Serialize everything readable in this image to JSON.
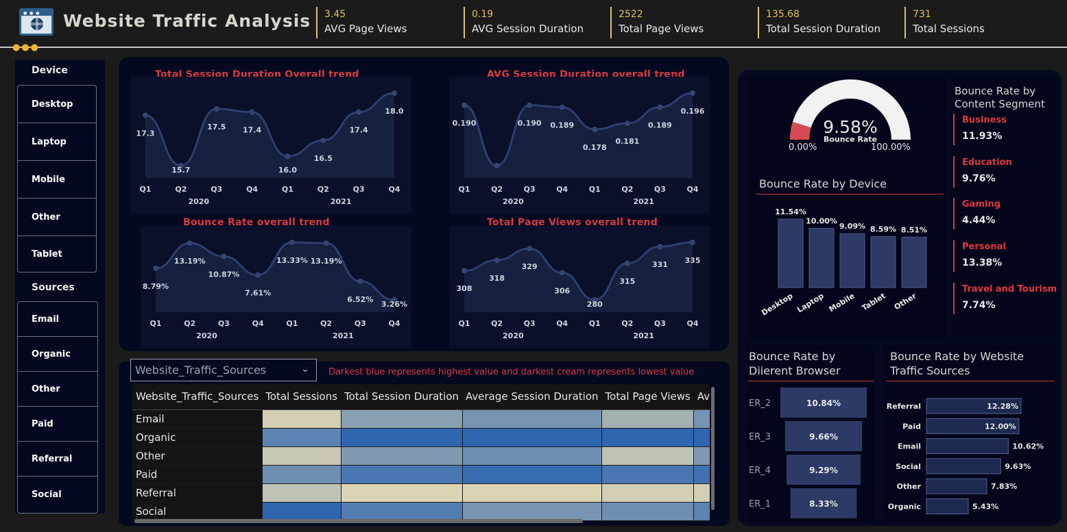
{
  "header": {
    "title": "Website Traffic Analysis",
    "kpis": [
      {
        "value": "3.45",
        "label": "AVG Page Views"
      },
      {
        "value": "0.19",
        "label": "AVG Session Duration"
      },
      {
        "value": "2522",
        "label": "Total Page Views"
      },
      {
        "value": "135.68",
        "label": "Total Session Duration"
      },
      {
        "value": "731",
        "label": "Total Sessions"
      }
    ]
  },
  "slicers": {
    "device": {
      "title": "Device",
      "items": [
        "Desktop",
        "Laptop",
        "Mobile",
        "Other",
        "Tablet"
      ]
    },
    "sources": {
      "title": "Sources",
      "items": [
        "Email",
        "Organic",
        "Other",
        "Paid",
        "Referral",
        "Social"
      ]
    }
  },
  "colors": {
    "accent_red": "#d83a44",
    "line": "#2e3f6e",
    "area": "#16203f",
    "bar": "#2e3a66",
    "gauge_fill": "#d84a52",
    "kpi_gold": "#e0c15a"
  },
  "chart_data": [
    {
      "type": "area",
      "title": "Total Session Duration Overall trend",
      "x": [
        "Q1",
        "Q2",
        "Q3",
        "Q4",
        "Q1",
        "Q2",
        "Q3",
        "Q4"
      ],
      "groups": [
        "2020",
        "2021"
      ],
      "values": [
        17.3,
        15.7,
        17.5,
        17.4,
        16.0,
        16.5,
        17.4,
        18.0
      ],
      "labels": [
        "17.3",
        "15.7",
        "17.5",
        "17.4",
        "16.0",
        "16.5",
        "17.4",
        "18.0"
      ]
    },
    {
      "type": "area",
      "title": "AVG Session Duration overall trend",
      "x": [
        "Q1",
        "Q2",
        "Q3",
        "Q4",
        "Q1",
        "Q2",
        "Q3",
        "Q4"
      ],
      "groups": [
        "2020",
        "2021"
      ],
      "values": [
        0.19,
        0.16,
        0.19,
        0.189,
        0.178,
        0.181,
        0.189,
        0.196
      ],
      "labels": [
        "0.190",
        "",
        "0.190",
        "0.189",
        "0.178",
        "0.181",
        "0.189",
        "0.196"
      ]
    },
    {
      "type": "area",
      "title": "Bounce Rate overall trend",
      "x": [
        "Q1",
        "Q2",
        "Q3",
        "Q4",
        "Q1",
        "Q2",
        "Q3",
        "Q4"
      ],
      "groups": [
        "2020",
        "2021"
      ],
      "values": [
        8.79,
        13.19,
        10.87,
        7.61,
        13.33,
        13.19,
        6.52,
        3.26
      ],
      "labels": [
        "8.79%",
        "13.19%",
        "10.87%",
        "7.61%",
        "13.33%",
        "13.19%",
        "6.52%",
        "3.26%"
      ]
    },
    {
      "type": "area",
      "title": "Total Page Views overall trend",
      "x": [
        "Q1",
        "Q2",
        "Q3",
        "Q4",
        "Q1",
        "Q2",
        "Q3",
        "Q4"
      ],
      "groups": [
        "2020",
        "2021"
      ],
      "values": [
        308,
        318,
        329,
        306,
        280,
        315,
        331,
        335
      ],
      "labels": [
        "308",
        "318",
        "329",
        "306",
        "280",
        "315",
        "331",
        "335"
      ]
    },
    {
      "type": "gauge",
      "title": "Bounce Rate",
      "value": 9.58,
      "value_label": "9.58%",
      "min_label": "0.00%",
      "max_label": "100.00%",
      "range": [
        0,
        100
      ]
    },
    {
      "type": "bar",
      "title": "Bounce Rate by Device",
      "categories": [
        "Desktop",
        "Laptop",
        "Mobile",
        "Tablet",
        "Other"
      ],
      "values": [
        11.54,
        10.0,
        9.09,
        8.59,
        8.51
      ],
      "labels": [
        "11.54%",
        "10.00%",
        "9.09%",
        "8.59%",
        "8.51%"
      ]
    },
    {
      "type": "bar",
      "title": "Bounce Rate by Diierent Browser",
      "categories": [
        "ER_2",
        "ER_3",
        "ER_4",
        "ER_1"
      ],
      "values": [
        10.84,
        9.66,
        9.29,
        8.33
      ],
      "labels": [
        "10.84%",
        "9.66%",
        "9.29%",
        "8.33%"
      ]
    },
    {
      "type": "bar",
      "title": "Bounce Rate by Website Traffic Sources",
      "categories": [
        "Referral",
        "Paid",
        "Email",
        "Social",
        "Other",
        "Organic"
      ],
      "values": [
        12.28,
        12.0,
        10.62,
        9.63,
        7.83,
        5.43
      ],
      "labels": [
        "12.28%",
        "12.00%",
        "10.62%",
        "9.63%",
        "7.83%",
        "5.43%"
      ]
    }
  ],
  "content_segments": {
    "title": "Bounce Rate by Content Segment",
    "items": [
      {
        "name": "Business",
        "value": "11.93%"
      },
      {
        "name": "Education",
        "value": "9.76%"
      },
      {
        "name": "Gaming",
        "value": "4.44%"
      },
      {
        "name": "Personal",
        "value": "13.38%"
      },
      {
        "name": "Travel and Tourism",
        "value": "7.74%"
      }
    ]
  },
  "table": {
    "dropdown_value": "Website_Traffic_Sources",
    "note": "Darkest blue represents highest value and darkest cream represents lowest value",
    "columns": [
      "Website_Traffic_Sources",
      "Total Sessions",
      "Total Session Duration",
      "Average Session Duration",
      "Total Page Views",
      "Average Pa"
    ],
    "rows": [
      {
        "label": "Email",
        "heat": [
          0.05,
          0.45,
          0.55,
          0.3,
          0.55
        ]
      },
      {
        "label": "Organic",
        "heat": [
          0.7,
          0.95,
          0.95,
          0.95,
          0.95
        ]
      },
      {
        "label": "Other",
        "heat": [
          0.1,
          0.5,
          0.6,
          0.15,
          0.5
        ]
      },
      {
        "label": "Paid",
        "heat": [
          0.6,
          0.8,
          0.9,
          0.8,
          0.85
        ]
      },
      {
        "label": "Referral",
        "heat": [
          0.15,
          0.0,
          0.0,
          0.05,
          0.05
        ]
      },
      {
        "label": "Social",
        "heat": [
          0.95,
          0.75,
          0.55,
          0.6,
          0.7
        ]
      }
    ]
  }
}
